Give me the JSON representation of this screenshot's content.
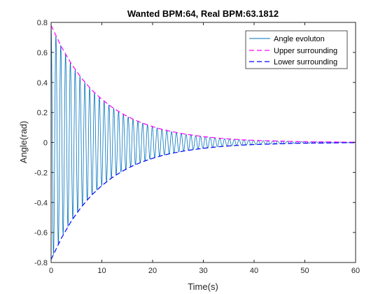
{
  "chart_data": {
    "type": "line",
    "title": "Wanted BPM:64, Real BPM:63.1812",
    "xlabel": "Time(s)",
    "ylabel": "Angle(rad)",
    "xlim": [
      0,
      60
    ],
    "ylim": [
      -0.8,
      0.8
    ],
    "xticks": [
      0,
      10,
      20,
      30,
      40,
      50,
      60
    ],
    "yticks": [
      -0.8,
      -0.6,
      -0.4,
      -0.2,
      0,
      0.2,
      0.4,
      0.6,
      0.8
    ],
    "xtick_labels": [
      "0",
      "10",
      "20",
      "30",
      "40",
      "50",
      "60"
    ],
    "ytick_labels": [
      "-0.8",
      "-0.6",
      "-0.4",
      "-0.2",
      "0",
      "0.2",
      "0.4",
      "0.6",
      "0.8"
    ],
    "grid": false,
    "legend_position": "top-right",
    "series": [
      {
        "name": "Angle evoluton",
        "style": "solid",
        "color": "#0072BD",
        "amplitude0": 0.78,
        "decay_rate": 0.1,
        "period_s": 0.9498
      },
      {
        "name": "Upper surrounding",
        "style": "dashed",
        "color": "#FF00FF",
        "x": [
          0,
          2,
          4,
          6,
          8,
          10,
          12,
          14,
          16,
          18,
          20,
          22,
          24,
          26,
          28,
          30,
          32,
          34,
          36,
          38,
          40,
          42,
          44,
          46,
          48,
          50,
          52,
          54,
          56,
          58,
          60
        ],
        "y": [
          0.78,
          0.639,
          0.523,
          0.428,
          0.35,
          0.287,
          0.235,
          0.192,
          0.157,
          0.129,
          0.106,
          0.086,
          0.071,
          0.058,
          0.048,
          0.039,
          0.032,
          0.026,
          0.021,
          0.017,
          0.014,
          0.012,
          0.01,
          0.008,
          0.006,
          0.005,
          0.004,
          0.004,
          0.003,
          0.002,
          0.002
        ]
      },
      {
        "name": "Lower surrounding",
        "style": "dashed",
        "color": "#0000FF",
        "x": [
          0,
          2,
          4,
          6,
          8,
          10,
          12,
          14,
          16,
          18,
          20,
          22,
          24,
          26,
          28,
          30,
          32,
          34,
          36,
          38,
          40,
          42,
          44,
          46,
          48,
          50,
          52,
          54,
          56,
          58,
          60
        ],
        "y": [
          -0.78,
          -0.639,
          -0.523,
          -0.428,
          -0.35,
          -0.287,
          -0.235,
          -0.192,
          -0.157,
          -0.129,
          -0.106,
          -0.086,
          -0.071,
          -0.058,
          -0.048,
          -0.039,
          -0.032,
          -0.026,
          -0.021,
          -0.017,
          -0.014,
          -0.012,
          -0.01,
          -0.008,
          -0.006,
          -0.005,
          -0.004,
          -0.004,
          -0.003,
          -0.002,
          -0.002
        ]
      }
    ]
  }
}
